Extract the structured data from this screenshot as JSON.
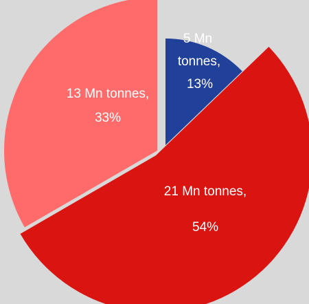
{
  "chart_data": {
    "type": "pie",
    "exploded": true,
    "start_angle_deg": 0,
    "direction": "clockwise",
    "slices": [
      {
        "value": 5,
        "percent": 13,
        "color": "#20409a",
        "label_lines": [
          "5 Mn",
          "tonnes,",
          "13%"
        ]
      },
      {
        "value": 21,
        "percent": 54,
        "color": "#d91411",
        "label_lines": [
          "21 Mn tonnes,",
          "54%"
        ]
      },
      {
        "value": 13,
        "percent": 33,
        "color": "#ff6b6b",
        "label_lines": [
          "13 Mn tonnes,",
          "33%"
        ]
      }
    ],
    "title": "",
    "legend": "none"
  }
}
